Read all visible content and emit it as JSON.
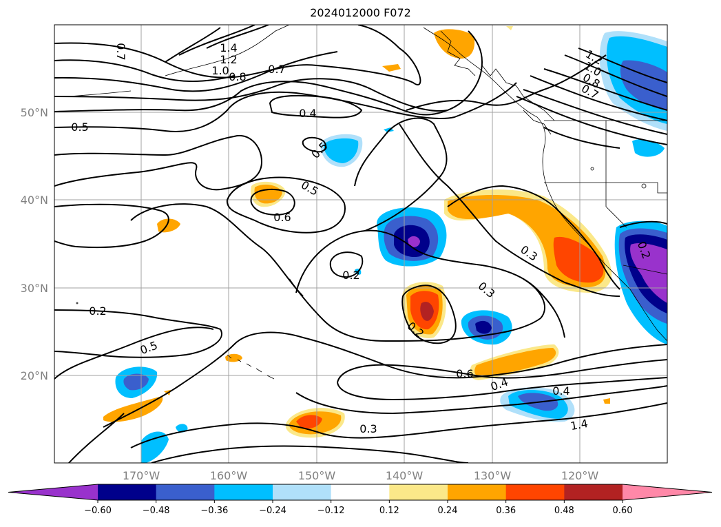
{
  "title": "2024012000 F072",
  "map": {
    "projection": "platecarree",
    "lon_range": [
      -180,
      -110
    ],
    "lat_range": [
      10,
      60
    ],
    "gridlines": true,
    "lat_labels": [
      "20°N",
      "30°N",
      "40°N",
      "50°N"
    ],
    "lon_labels": [
      "170°W",
      "160°W",
      "150°W",
      "140°W",
      "130°W",
      "120°W"
    ],
    "coastline_region": "North Pacific / North America west coast"
  },
  "contour_labels": [
    "1.4",
    "1.2",
    "1.0",
    "0.8",
    "0.7",
    "0.7",
    "0.5",
    "0.4",
    "0.5",
    "0.5",
    "0.6",
    "0.2",
    "0.3",
    "0.2",
    "0.2",
    "0.5",
    "0.6",
    "0.4",
    "0.4",
    "0.3",
    "0.3",
    "0.2",
    "1.4",
    "1.2",
    "1.0",
    "0.8",
    "0.7"
  ],
  "colorbar": {
    "ticks": [
      "−0.60",
      "−0.48",
      "−0.36",
      "−0.24",
      "−0.12",
      "0.12",
      "0.24",
      "0.36",
      "0.48",
      "0.60"
    ],
    "bins": [
      {
        "lo": null,
        "hi": -0.6,
        "color": "#9932cc"
      },
      {
        "lo": -0.6,
        "hi": -0.48,
        "color": "#00008b"
      },
      {
        "lo": -0.48,
        "hi": -0.36,
        "color": "#3a5fcd"
      },
      {
        "lo": -0.36,
        "hi": -0.24,
        "color": "#00bfff"
      },
      {
        "lo": -0.24,
        "hi": -0.12,
        "color": "#b0e0fa"
      },
      {
        "lo": -0.12,
        "hi": 0.12,
        "color": "#ffffff"
      },
      {
        "lo": 0.12,
        "hi": 0.24,
        "color": "#fbe889"
      },
      {
        "lo": 0.24,
        "hi": 0.36,
        "color": "#ffa500"
      },
      {
        "lo": 0.36,
        "hi": 0.48,
        "color": "#ff4500"
      },
      {
        "lo": 0.48,
        "hi": 0.6,
        "color": "#b22222"
      },
      {
        "lo": 0.6,
        "hi": null,
        "color": "#ff88a8"
      }
    ],
    "extend": "both"
  }
}
